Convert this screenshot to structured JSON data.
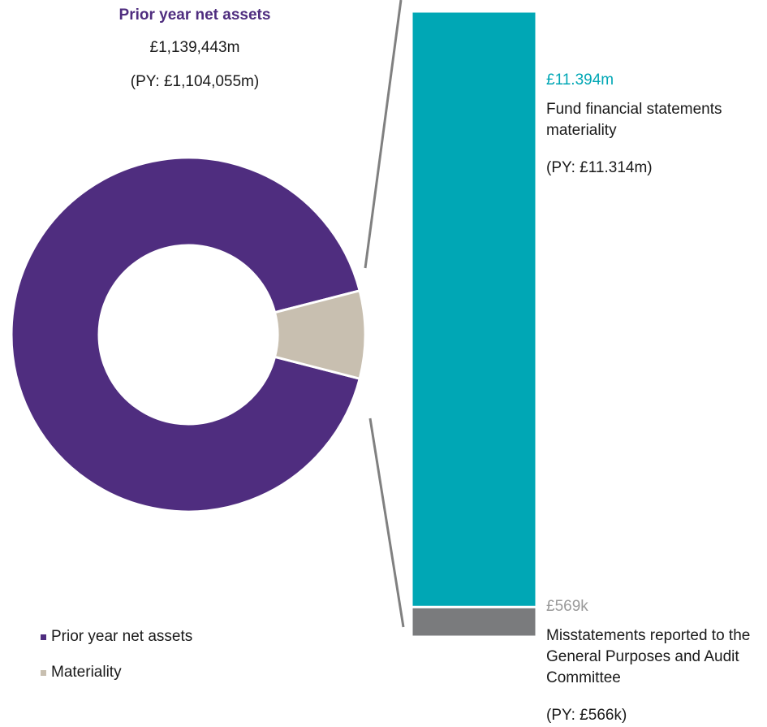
{
  "header": {
    "title": "Prior year net assets",
    "current_value": "£1,139,443m",
    "prior_value": "(PY: £1,104,055m)"
  },
  "colors": {
    "net_assets": "#4f2d7f",
    "materiality": "#c8bfb0",
    "fund_materiality": "#00a7b5",
    "misstatements": "#7a7b7d",
    "connector": "#808080"
  },
  "chart_data": [
    {
      "type": "pie",
      "variant": "donut",
      "title": "Prior year net assets",
      "categories": [
        "Prior year net assets",
        "Materiality"
      ],
      "values": [
        92,
        8
      ],
      "legend": {
        "placement": "bottom-left",
        "entries": [
          "Prior year net assets",
          "Materiality"
        ]
      }
    },
    {
      "type": "bar",
      "stacked": true,
      "series": [
        {
          "name": "Misstatements reported to the General Purposes and Audit Committee",
          "value": 0.569
        },
        {
          "name": "Fund financial statements materiality",
          "value": 11.394
        }
      ]
    }
  ],
  "annotations": {
    "materiality_amount": "£11.394m",
    "materiality_label": "Fund financial statements materiality",
    "materiality_py": "(PY: £11.314m)",
    "misstatement_amount": "£569k",
    "misstatement_label": "Misstatements reported to the General Purposes and Audit Committee",
    "misstatement_py": "(PY: £566k)"
  }
}
